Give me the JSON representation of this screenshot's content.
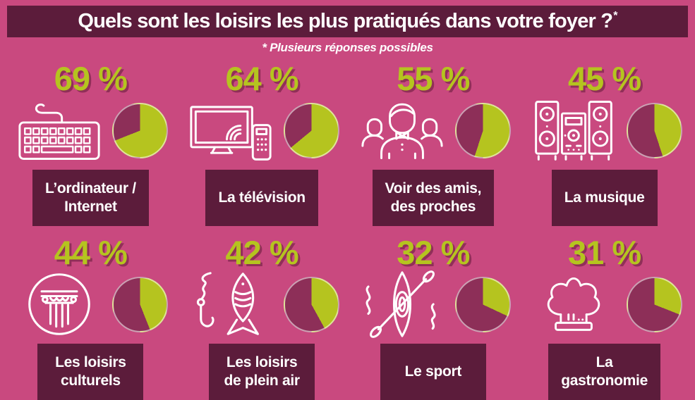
{
  "title": {
    "main": "Quels sont les loisirs les plus pratiqués dans votre foyer ?",
    "asterisk": "*"
  },
  "subtitle": "* Plusieurs réponses possibles",
  "colors": {
    "background": "#c9497f",
    "panel": "#5c1c3b",
    "accent_green": "#b5c41f",
    "pie_remainder": "#8d2f58",
    "text_white": "#ffffff"
  },
  "chart_data": {
    "type": "pie",
    "title": "Quels sont les loisirs les plus pratiqués dans votre foyer ?*",
    "note": "* Plusieurs réponses possibles",
    "unit": "%",
    "layout": "8 mini pie charts, 4 columns x 2 rows, each with icon, percentage and label",
    "value_color": "#b5c41f",
    "remainder_color": "#8d2f58",
    "items": [
      {
        "label": "L’ordinateur / Internet",
        "label_lines": [
          "L’ordinateur /",
          "Internet"
        ],
        "value": 69,
        "display": "69 %",
        "icon": "keyboard-icon"
      },
      {
        "label": "La télévision",
        "label_lines": [
          "La télévision"
        ],
        "value": 64,
        "display": "64 %",
        "icon": "tv-remote-icon"
      },
      {
        "label": "Voir des amis, des proches",
        "label_lines": [
          "Voir des amis,",
          "des proches"
        ],
        "value": 55,
        "display": "55 %",
        "icon": "friends-icon"
      },
      {
        "label": "La musique",
        "label_lines": [
          "La musique"
        ],
        "value": 45,
        "display": "45 %",
        "icon": "stereo-icon"
      },
      {
        "label": "Les loisirs culturels",
        "label_lines": [
          "Les loisirs",
          "culturels"
        ],
        "value": 44,
        "display": "44 %",
        "icon": "column-icon"
      },
      {
        "label": "Les loisirs de plein air",
        "label_lines": [
          "Les loisirs",
          "de plein air"
        ],
        "value": 42,
        "display": "42 %",
        "icon": "fishing-icon"
      },
      {
        "label": "Le sport",
        "label_lines": [
          "Le sport"
        ],
        "value": 32,
        "display": "32 %",
        "icon": "kayak-icon"
      },
      {
        "label": "La gastronomie",
        "label_lines": [
          "La",
          "gastronomie"
        ],
        "value": 31,
        "display": "31 %",
        "icon": "chef-hat-icon"
      }
    ]
  }
}
